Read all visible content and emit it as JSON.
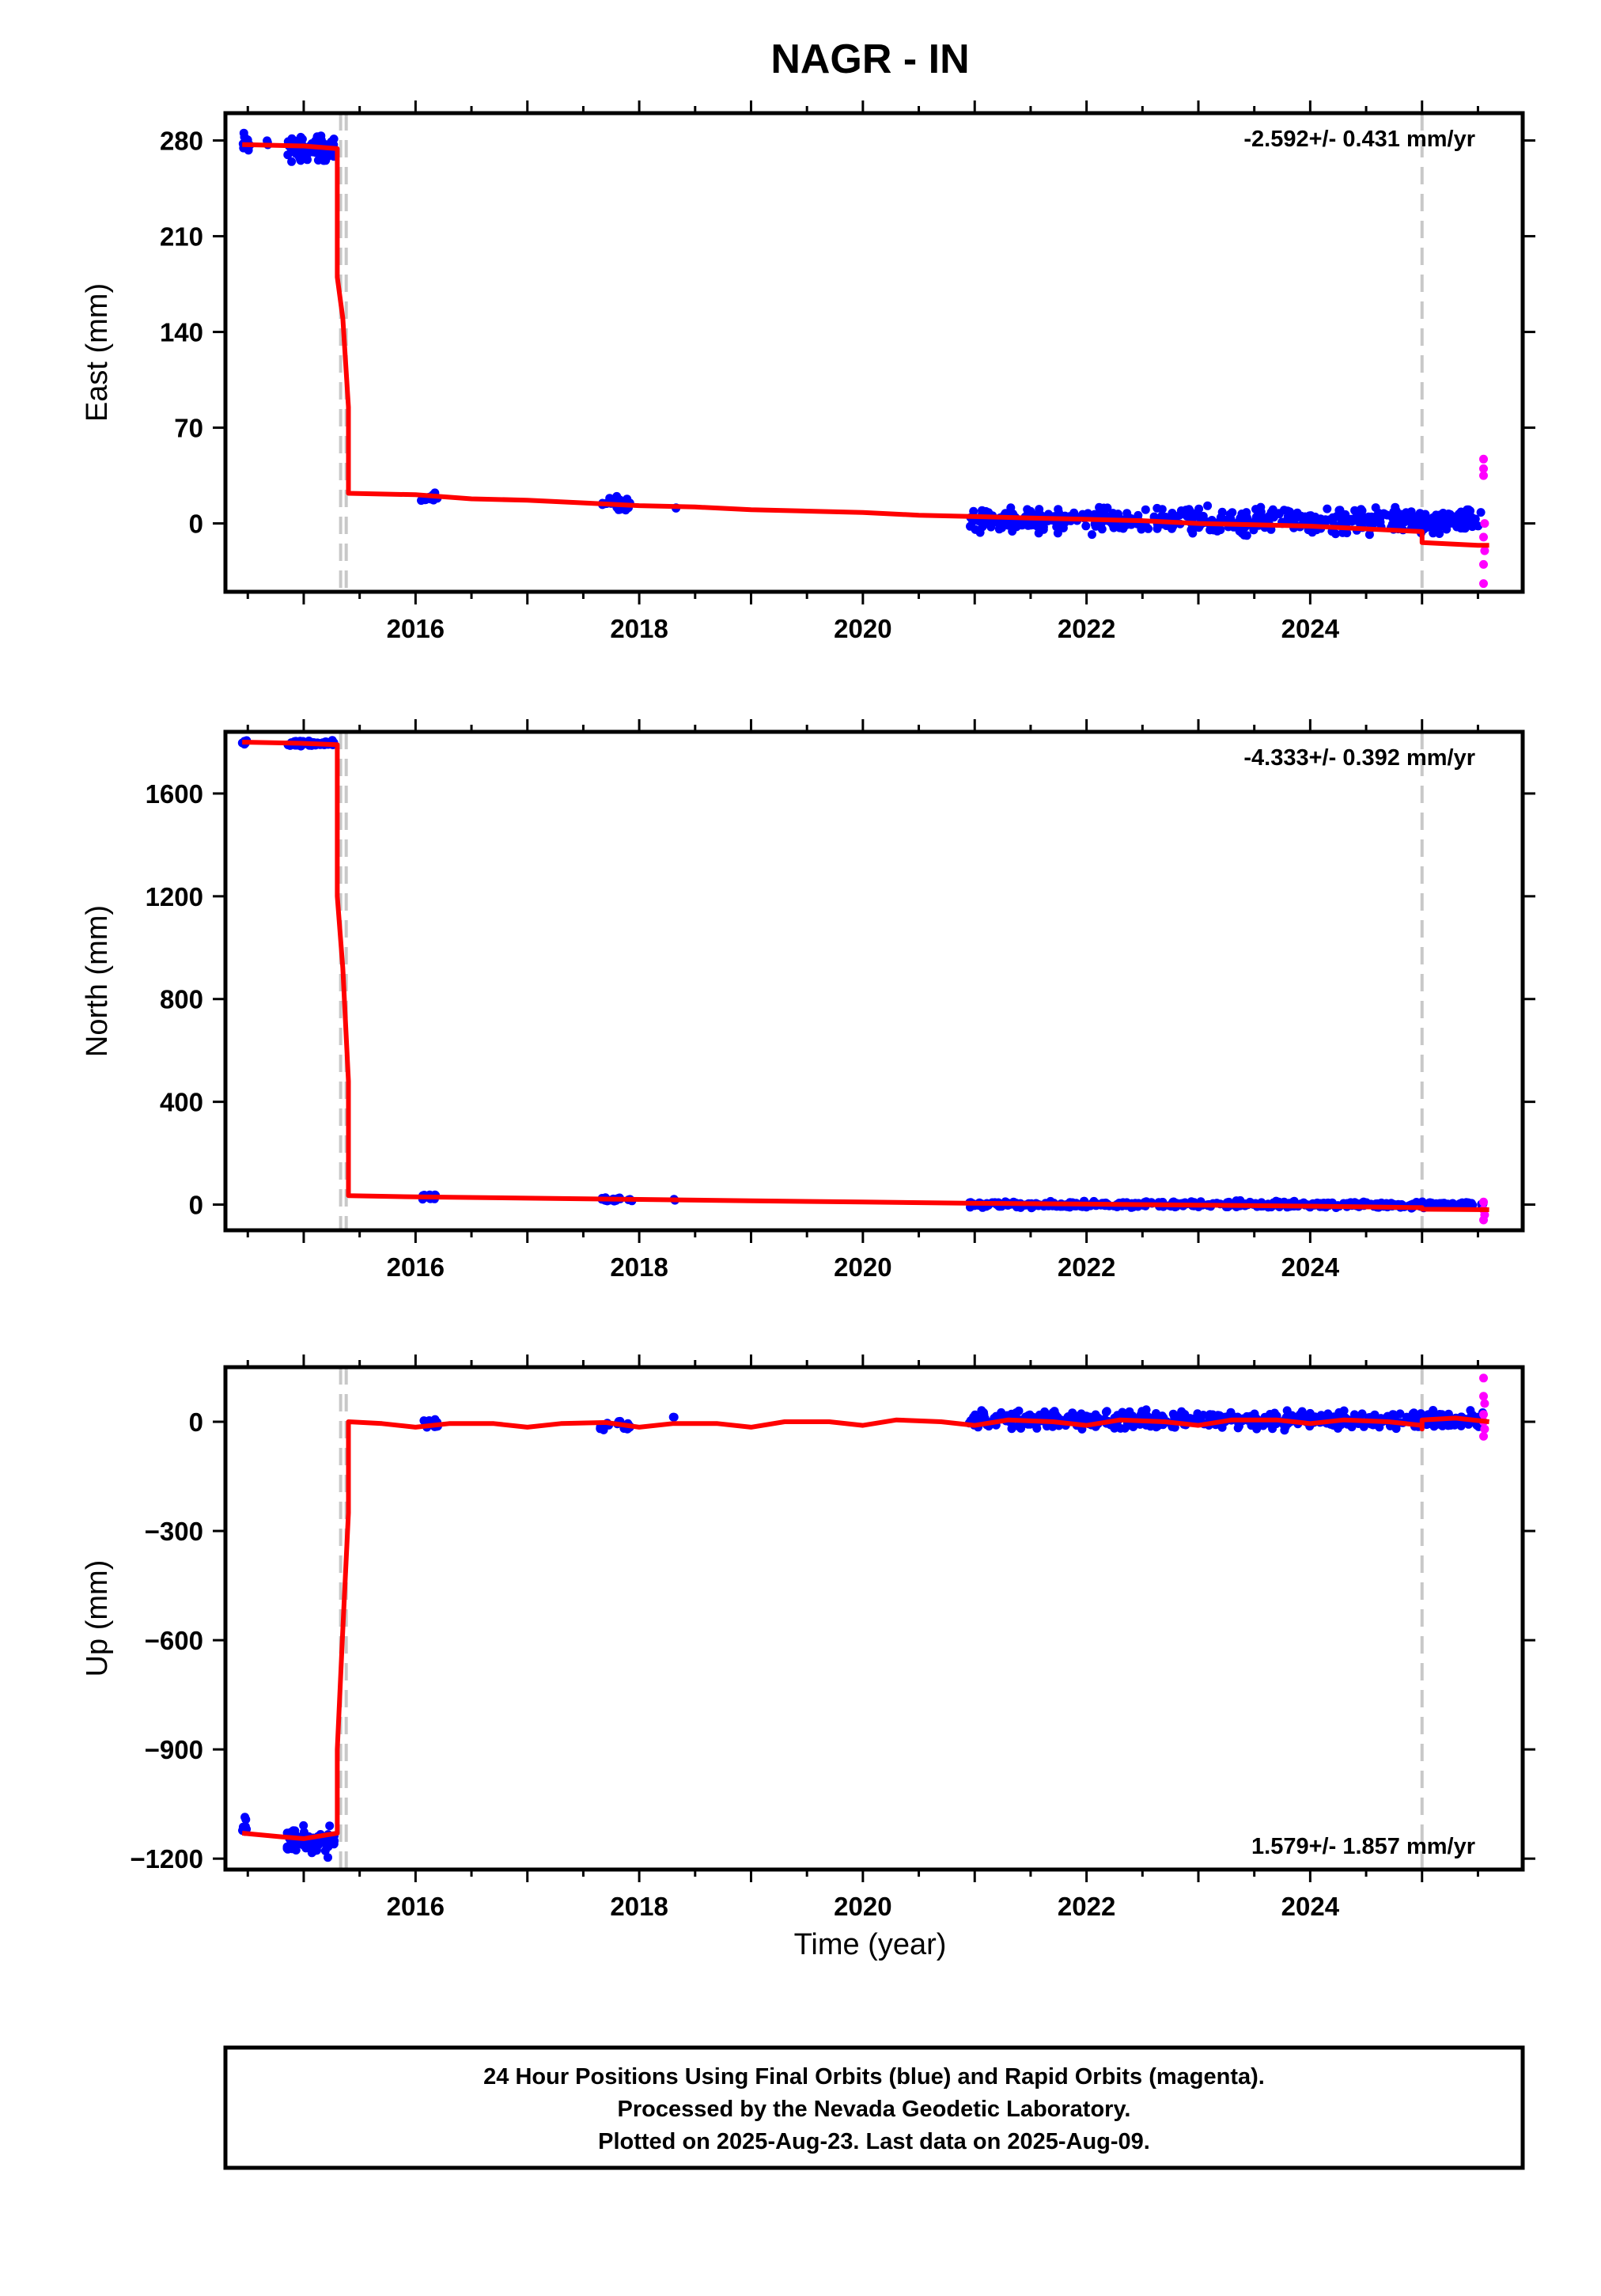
{
  "title": "NAGR - IN",
  "xlabel": "Time (year)",
  "caption_lines": [
    "24 Hour Positions Using Final Orbits (blue) and Rapid Orbits (magenta).",
    "Processed by the Nevada Geodetic Laboratory.",
    "Plotted on 2025-Aug-23. Last data on 2025-Aug-09."
  ],
  "colors": {
    "final_orbits": "#0000ff",
    "rapid_orbits": "#ff00ff",
    "model": "#ff0000",
    "event_line": "#c8c8c8"
  },
  "chart_data": [
    {
      "type": "scatter",
      "ylabel": "East (mm)",
      "rate_text": "-2.592+/- 0.431 mm/yr",
      "xlim": [
        2014.3,
        2025.9
      ],
      "ylim": [
        -50,
        300
      ],
      "x_ticks": [
        2016,
        2018,
        2020,
        2022,
        2024
      ],
      "y_ticks": [
        0,
        70,
        140,
        210,
        280
      ],
      "event_lines": [
        2015.33,
        2015.38,
        2025.0
      ],
      "model_line": [
        [
          2014.45,
          277
        ],
        [
          2015.0,
          276
        ],
        [
          2015.3,
          274
        ],
        [
          2015.3,
          180
        ],
        [
          2015.35,
          150
        ],
        [
          2015.35,
          150
        ],
        [
          2015.4,
          85
        ],
        [
          2015.4,
          22
        ],
        [
          2016.0,
          21
        ],
        [
          2016.5,
          18
        ],
        [
          2017.0,
          17
        ],
        [
          2017.5,
          15
        ],
        [
          2018.0,
          13
        ],
        [
          2018.5,
          12
        ],
        [
          2019.0,
          10
        ],
        [
          2019.5,
          9
        ],
        [
          2020.0,
          8
        ],
        [
          2020.5,
          6
        ],
        [
          2021.0,
          5
        ],
        [
          2021.5,
          4
        ],
        [
          2022.0,
          3
        ],
        [
          2022.5,
          2
        ],
        [
          2023.0,
          0
        ],
        [
          2023.5,
          -1
        ],
        [
          2024.0,
          -2
        ],
        [
          2024.5,
          -4
        ],
        [
          2025.0,
          -6
        ],
        [
          2025.0,
          -14
        ],
        [
          2025.5,
          -16
        ],
        [
          2025.6,
          -16
        ]
      ],
      "final_clusters": [
        {
          "x_range": [
            2014.45,
            2014.52
          ],
          "y_center": 277,
          "spread": 7,
          "count": 10
        },
        {
          "x_range": [
            2014.65,
            2014.7
          ],
          "y_center": 278,
          "spread": 3,
          "count": 3
        },
        {
          "x_range": [
            2014.85,
            2015.28
          ],
          "y_center": 274,
          "spread": 7,
          "count": 90
        },
        {
          "x_range": [
            2016.05,
            2016.2
          ],
          "y_center": 19,
          "spread": 3,
          "count": 20
        },
        {
          "x_range": [
            2017.65,
            2017.95
          ],
          "y_center": 14,
          "spread": 4,
          "count": 25
        },
        {
          "x_range": [
            2018.3,
            2018.33
          ],
          "y_center": 11,
          "spread": 1,
          "count": 2
        },
        {
          "x_range": [
            2020.95,
            2025.55
          ],
          "y_center": 2,
          "spread": 7,
          "count": 550
        }
      ],
      "rapid_points": [
        [
          2025.55,
          47
        ],
        [
          2025.55,
          40
        ],
        [
          2025.55,
          35
        ],
        [
          2025.56,
          0
        ],
        [
          2025.55,
          -10
        ],
        [
          2025.56,
          -20
        ],
        [
          2025.55,
          -30
        ],
        [
          2025.55,
          -44
        ]
      ]
    },
    {
      "type": "scatter",
      "ylabel": "North (mm)",
      "rate_text": "-4.333+/- 0.392 mm/yr",
      "xlim": [
        2014.3,
        2025.9
      ],
      "ylim": [
        -100,
        1840
      ],
      "x_ticks": [
        2016,
        2018,
        2020,
        2022,
        2024
      ],
      "y_ticks": [
        0,
        400,
        800,
        1200,
        1600
      ],
      "event_lines": [
        2015.33,
        2015.38,
        2025.0
      ],
      "model_line": [
        [
          2014.45,
          1800
        ],
        [
          2015.0,
          1795
        ],
        [
          2015.3,
          1790
        ],
        [
          2015.3,
          1200
        ],
        [
          2015.35,
          920
        ],
        [
          2015.35,
          920
        ],
        [
          2015.4,
          480
        ],
        [
          2015.4,
          35
        ],
        [
          2016.0,
          30
        ],
        [
          2017.0,
          25
        ],
        [
          2018.0,
          20
        ],
        [
          2019.0,
          15
        ],
        [
          2020.0,
          10
        ],
        [
          2021.0,
          5
        ],
        [
          2022.0,
          2
        ],
        [
          2023.0,
          -2
        ],
        [
          2024.0,
          -6
        ],
        [
          2025.0,
          -12
        ],
        [
          2025.0,
          -18
        ],
        [
          2025.6,
          -20
        ]
      ],
      "final_clusters": [
        {
          "x_range": [
            2014.45,
            2014.5
          ],
          "y_center": 1800,
          "spread": 10,
          "count": 8
        },
        {
          "x_range": [
            2014.85,
            2015.28
          ],
          "y_center": 1795,
          "spread": 10,
          "count": 60
        },
        {
          "x_range": [
            2016.05,
            2016.2
          ],
          "y_center": 30,
          "spread": 8,
          "count": 15
        },
        {
          "x_range": [
            2017.65,
            2017.95
          ],
          "y_center": 20,
          "spread": 8,
          "count": 20
        },
        {
          "x_range": [
            2018.3,
            2018.33
          ],
          "y_center": 15,
          "spread": 5,
          "count": 2
        },
        {
          "x_range": [
            2020.95,
            2025.55
          ],
          "y_center": 0,
          "spread": 10,
          "count": 500
        }
      ],
      "rapid_points": [
        [
          2025.55,
          10
        ],
        [
          2025.55,
          -20
        ],
        [
          2025.56,
          -40
        ],
        [
          2025.55,
          -60
        ]
      ]
    },
    {
      "type": "scatter",
      "ylabel": "Up (mm)",
      "rate_text": "1.579+/- 1.857 mm/yr",
      "xlim": [
        2014.3,
        2025.9
      ],
      "ylim": [
        -1230,
        150
      ],
      "x_ticks": [
        2016,
        2018,
        2020,
        2022,
        2024
      ],
      "y_ticks": [
        0,
        -300,
        -600,
        -900,
        -1200
      ],
      "y_tick_labels": [
        "0",
        "−300",
        "−600",
        "−900",
        "−1200"
      ],
      "event_lines": [
        2015.33,
        2015.38,
        2025.0
      ],
      "model_line": [
        [
          2014.45,
          -1130
        ],
        [
          2014.8,
          -1140
        ],
        [
          2015.0,
          -1145
        ],
        [
          2015.3,
          -1130
        ],
        [
          2015.3,
          -900
        ],
        [
          2015.35,
          -570
        ],
        [
          2015.35,
          -570
        ],
        [
          2015.4,
          -250
        ],
        [
          2015.4,
          0
        ],
        [
          2015.7,
          -5
        ],
        [
          2016.0,
          -15
        ],
        [
          2016.3,
          -5
        ],
        [
          2016.7,
          -5
        ],
        [
          2017.0,
          -15
        ],
        [
          2017.3,
          -5
        ],
        [
          2017.7,
          -2
        ],
        [
          2018.0,
          -15
        ],
        [
          2018.3,
          -5
        ],
        [
          2018.7,
          -5
        ],
        [
          2019.0,
          -15
        ],
        [
          2019.3,
          0
        ],
        [
          2019.7,
          0
        ],
        [
          2020.0,
          -10
        ],
        [
          2020.3,
          5
        ],
        [
          2020.7,
          0
        ],
        [
          2021.0,
          -10
        ],
        [
          2021.3,
          5
        ],
        [
          2021.7,
          0
        ],
        [
          2022.0,
          -10
        ],
        [
          2022.3,
          5
        ],
        [
          2022.7,
          0
        ],
        [
          2023.0,
          -10
        ],
        [
          2023.3,
          5
        ],
        [
          2023.7,
          5
        ],
        [
          2024.0,
          -5
        ],
        [
          2024.3,
          5
        ],
        [
          2024.7,
          0
        ],
        [
          2025.0,
          -10
        ],
        [
          2025.0,
          -20
        ],
        [
          2025.0,
          5
        ],
        [
          2025.3,
          10
        ],
        [
          2025.6,
          0
        ]
      ],
      "final_clusters": [
        {
          "x_range": [
            2014.45,
            2014.5
          ],
          "y_center": -1115,
          "spread": 20,
          "count": 8
        },
        {
          "x_range": [
            2014.85,
            2015.28
          ],
          "y_center": -1150,
          "spread": 30,
          "count": 80
        },
        {
          "x_range": [
            2016.05,
            2016.2
          ],
          "y_center": -5,
          "spread": 12,
          "count": 15
        },
        {
          "x_range": [
            2017.65,
            2017.95
          ],
          "y_center": -10,
          "spread": 12,
          "count": 20
        },
        {
          "x_range": [
            2018.3,
            2018.33
          ],
          "y_center": 10,
          "spread": 5,
          "count": 2
        },
        {
          "x_range": [
            2020.95,
            2025.55
          ],
          "y_center": 5,
          "spread": 18,
          "count": 550
        }
      ],
      "rapid_points": [
        [
          2025.55,
          120
        ],
        [
          2025.55,
          70
        ],
        [
          2025.56,
          50
        ],
        [
          2025.55,
          20
        ],
        [
          2025.55,
          0
        ],
        [
          2025.56,
          -20
        ],
        [
          2025.55,
          -40
        ]
      ]
    }
  ]
}
